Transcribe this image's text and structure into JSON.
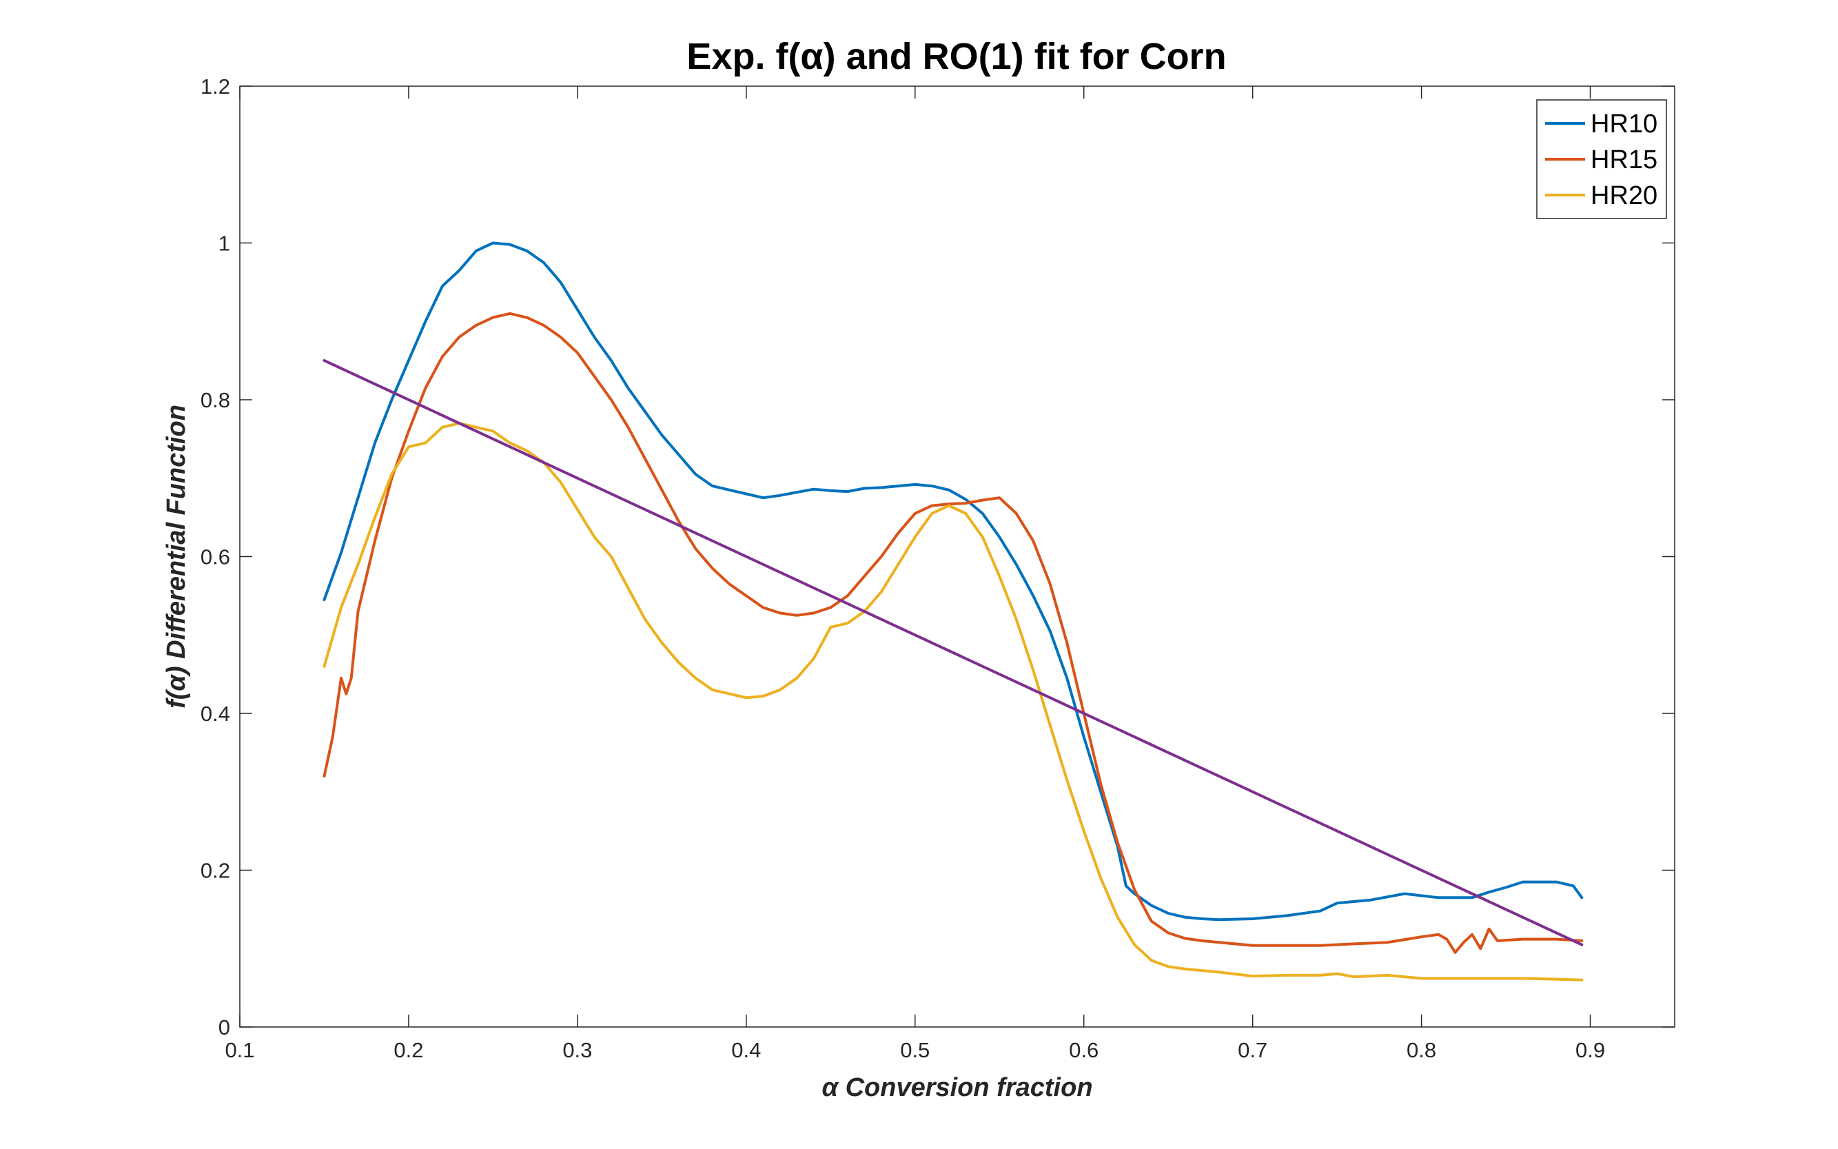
{
  "chart_data": {
    "type": "line",
    "title": "Exp. f(α) and RO(1) fit for Corn",
    "xlabel": "α  Conversion fraction",
    "ylabel": "f(α)  Differential Function",
    "xlim": [
      0.1,
      0.95
    ],
    "ylim": [
      0,
      1.2
    ],
    "xticks": [
      "0.1",
      "0.2",
      "0.3",
      "0.4",
      "0.5",
      "0.6",
      "0.7",
      "0.8",
      "0.9"
    ],
    "yticks": [
      "0",
      "0.2",
      "0.4",
      "0.6",
      "0.8",
      "1",
      "1.2"
    ],
    "legend_position": "top-right",
    "grid": false,
    "series": [
      {
        "name": "HR10",
        "color": "#0072BD",
        "points": [
          [
            0.15,
            0.545
          ],
          [
            0.16,
            0.605
          ],
          [
            0.17,
            0.675
          ],
          [
            0.18,
            0.745
          ],
          [
            0.19,
            0.8
          ],
          [
            0.2,
            0.85
          ],
          [
            0.21,
            0.9
          ],
          [
            0.22,
            0.945
          ],
          [
            0.23,
            0.965
          ],
          [
            0.24,
            0.99
          ],
          [
            0.25,
            1.0
          ],
          [
            0.26,
            0.998
          ],
          [
            0.27,
            0.99
          ],
          [
            0.28,
            0.975
          ],
          [
            0.29,
            0.95
          ],
          [
            0.3,
            0.915
          ],
          [
            0.31,
            0.88
          ],
          [
            0.32,
            0.85
          ],
          [
            0.33,
            0.815
          ],
          [
            0.34,
            0.785
          ],
          [
            0.35,
            0.755
          ],
          [
            0.36,
            0.73
          ],
          [
            0.37,
            0.705
          ],
          [
            0.38,
            0.69
          ],
          [
            0.39,
            0.685
          ],
          [
            0.4,
            0.68
          ],
          [
            0.41,
            0.675
          ],
          [
            0.42,
            0.678
          ],
          [
            0.43,
            0.682
          ],
          [
            0.44,
            0.686
          ],
          [
            0.45,
            0.684
          ],
          [
            0.46,
            0.683
          ],
          [
            0.47,
            0.687
          ],
          [
            0.48,
            0.688
          ],
          [
            0.49,
            0.69
          ],
          [
            0.5,
            0.692
          ],
          [
            0.51,
            0.69
          ],
          [
            0.52,
            0.685
          ],
          [
            0.53,
            0.673
          ],
          [
            0.54,
            0.655
          ],
          [
            0.55,
            0.625
          ],
          [
            0.56,
            0.59
          ],
          [
            0.57,
            0.55
          ],
          [
            0.58,
            0.505
          ],
          [
            0.59,
            0.445
          ],
          [
            0.6,
            0.37
          ],
          [
            0.61,
            0.3
          ],
          [
            0.62,
            0.23
          ],
          [
            0.625,
            0.18
          ],
          [
            0.63,
            0.17
          ],
          [
            0.64,
            0.155
          ],
          [
            0.65,
            0.145
          ],
          [
            0.66,
            0.14
          ],
          [
            0.67,
            0.138
          ],
          [
            0.68,
            0.137
          ],
          [
            0.7,
            0.138
          ],
          [
            0.72,
            0.142
          ],
          [
            0.74,
            0.148
          ],
          [
            0.75,
            0.158
          ],
          [
            0.77,
            0.162
          ],
          [
            0.79,
            0.17
          ],
          [
            0.81,
            0.165
          ],
          [
            0.83,
            0.165
          ],
          [
            0.84,
            0.172
          ],
          [
            0.85,
            0.178
          ],
          [
            0.86,
            0.185
          ],
          [
            0.87,
            0.185
          ],
          [
            0.88,
            0.185
          ],
          [
            0.89,
            0.18
          ],
          [
            0.895,
            0.165
          ]
        ]
      },
      {
        "name": "HR15",
        "color": "#D95319",
        "points": [
          [
            0.15,
            0.32
          ],
          [
            0.155,
            0.37
          ],
          [
            0.16,
            0.445
          ],
          [
            0.163,
            0.425
          ],
          [
            0.166,
            0.445
          ],
          [
            0.17,
            0.53
          ],
          [
            0.18,
            0.62
          ],
          [
            0.19,
            0.7
          ],
          [
            0.2,
            0.76
          ],
          [
            0.21,
            0.815
          ],
          [
            0.22,
            0.855
          ],
          [
            0.23,
            0.88
          ],
          [
            0.24,
            0.895
          ],
          [
            0.25,
            0.905
          ],
          [
            0.26,
            0.91
          ],
          [
            0.27,
            0.905
          ],
          [
            0.28,
            0.895
          ],
          [
            0.29,
            0.88
          ],
          [
            0.3,
            0.86
          ],
          [
            0.31,
            0.83
          ],
          [
            0.32,
            0.8
          ],
          [
            0.33,
            0.765
          ],
          [
            0.34,
            0.725
          ],
          [
            0.35,
            0.685
          ],
          [
            0.36,
            0.645
          ],
          [
            0.37,
            0.61
          ],
          [
            0.38,
            0.585
          ],
          [
            0.39,
            0.565
          ],
          [
            0.4,
            0.55
          ],
          [
            0.41,
            0.535
          ],
          [
            0.42,
            0.528
          ],
          [
            0.43,
            0.525
          ],
          [
            0.44,
            0.528
          ],
          [
            0.45,
            0.535
          ],
          [
            0.46,
            0.55
          ],
          [
            0.47,
            0.575
          ],
          [
            0.48,
            0.6
          ],
          [
            0.49,
            0.63
          ],
          [
            0.5,
            0.655
          ],
          [
            0.51,
            0.665
          ],
          [
            0.52,
            0.667
          ],
          [
            0.53,
            0.668
          ],
          [
            0.54,
            0.672
          ],
          [
            0.55,
            0.675
          ],
          [
            0.56,
            0.655
          ],
          [
            0.57,
            0.62
          ],
          [
            0.58,
            0.565
          ],
          [
            0.59,
            0.49
          ],
          [
            0.6,
            0.4
          ],
          [
            0.61,
            0.31
          ],
          [
            0.62,
            0.235
          ],
          [
            0.63,
            0.175
          ],
          [
            0.64,
            0.135
          ],
          [
            0.65,
            0.12
          ],
          [
            0.66,
            0.113
          ],
          [
            0.67,
            0.11
          ],
          [
            0.68,
            0.108
          ],
          [
            0.7,
            0.104
          ],
          [
            0.72,
            0.104
          ],
          [
            0.74,
            0.104
          ],
          [
            0.76,
            0.106
          ],
          [
            0.78,
            0.108
          ],
          [
            0.8,
            0.115
          ],
          [
            0.81,
            0.118
          ],
          [
            0.815,
            0.112
          ],
          [
            0.82,
            0.095
          ],
          [
            0.825,
            0.108
          ],
          [
            0.83,
            0.118
          ],
          [
            0.835,
            0.1
          ],
          [
            0.84,
            0.125
          ],
          [
            0.845,
            0.11
          ],
          [
            0.86,
            0.112
          ],
          [
            0.88,
            0.112
          ],
          [
            0.895,
            0.11
          ]
        ]
      },
      {
        "name": "HR20",
        "color": "#EDB120",
        "points": [
          [
            0.15,
            0.46
          ],
          [
            0.16,
            0.535
          ],
          [
            0.17,
            0.59
          ],
          [
            0.18,
            0.65
          ],
          [
            0.19,
            0.705
          ],
          [
            0.2,
            0.74
          ],
          [
            0.21,
            0.745
          ],
          [
            0.22,
            0.765
          ],
          [
            0.23,
            0.77
          ],
          [
            0.24,
            0.765
          ],
          [
            0.25,
            0.76
          ],
          [
            0.26,
            0.745
          ],
          [
            0.27,
            0.735
          ],
          [
            0.28,
            0.72
          ],
          [
            0.29,
            0.695
          ],
          [
            0.3,
            0.66
          ],
          [
            0.31,
            0.625
          ],
          [
            0.32,
            0.6
          ],
          [
            0.33,
            0.56
          ],
          [
            0.34,
            0.52
          ],
          [
            0.35,
            0.49
          ],
          [
            0.36,
            0.465
          ],
          [
            0.37,
            0.445
          ],
          [
            0.38,
            0.43
          ],
          [
            0.39,
            0.425
          ],
          [
            0.4,
            0.42
          ],
          [
            0.41,
            0.422
          ],
          [
            0.42,
            0.43
          ],
          [
            0.43,
            0.445
          ],
          [
            0.44,
            0.47
          ],
          [
            0.45,
            0.51
          ],
          [
            0.46,
            0.515
          ],
          [
            0.47,
            0.53
          ],
          [
            0.48,
            0.555
          ],
          [
            0.49,
            0.59
          ],
          [
            0.5,
            0.625
          ],
          [
            0.51,
            0.655
          ],
          [
            0.52,
            0.665
          ],
          [
            0.53,
            0.655
          ],
          [
            0.54,
            0.625
          ],
          [
            0.55,
            0.575
          ],
          [
            0.56,
            0.52
          ],
          [
            0.57,
            0.455
          ],
          [
            0.58,
            0.385
          ],
          [
            0.59,
            0.315
          ],
          [
            0.6,
            0.25
          ],
          [
            0.61,
            0.19
          ],
          [
            0.62,
            0.14
          ],
          [
            0.63,
            0.105
          ],
          [
            0.64,
            0.085
          ],
          [
            0.65,
            0.077
          ],
          [
            0.66,
            0.074
          ],
          [
            0.68,
            0.07
          ],
          [
            0.7,
            0.065
          ],
          [
            0.72,
            0.066
          ],
          [
            0.74,
            0.066
          ],
          [
            0.75,
            0.068
          ],
          [
            0.76,
            0.064
          ],
          [
            0.78,
            0.066
          ],
          [
            0.8,
            0.062
          ],
          [
            0.82,
            0.062
          ],
          [
            0.84,
            0.062
          ],
          [
            0.86,
            0.062
          ],
          [
            0.88,
            0.061
          ],
          [
            0.895,
            0.06
          ]
        ]
      },
      {
        "name": "RO(1) fit",
        "color": "#7E2F8E",
        "points": [
          [
            0.15,
            0.85
          ],
          [
            0.895,
            0.105
          ]
        ]
      }
    ]
  }
}
